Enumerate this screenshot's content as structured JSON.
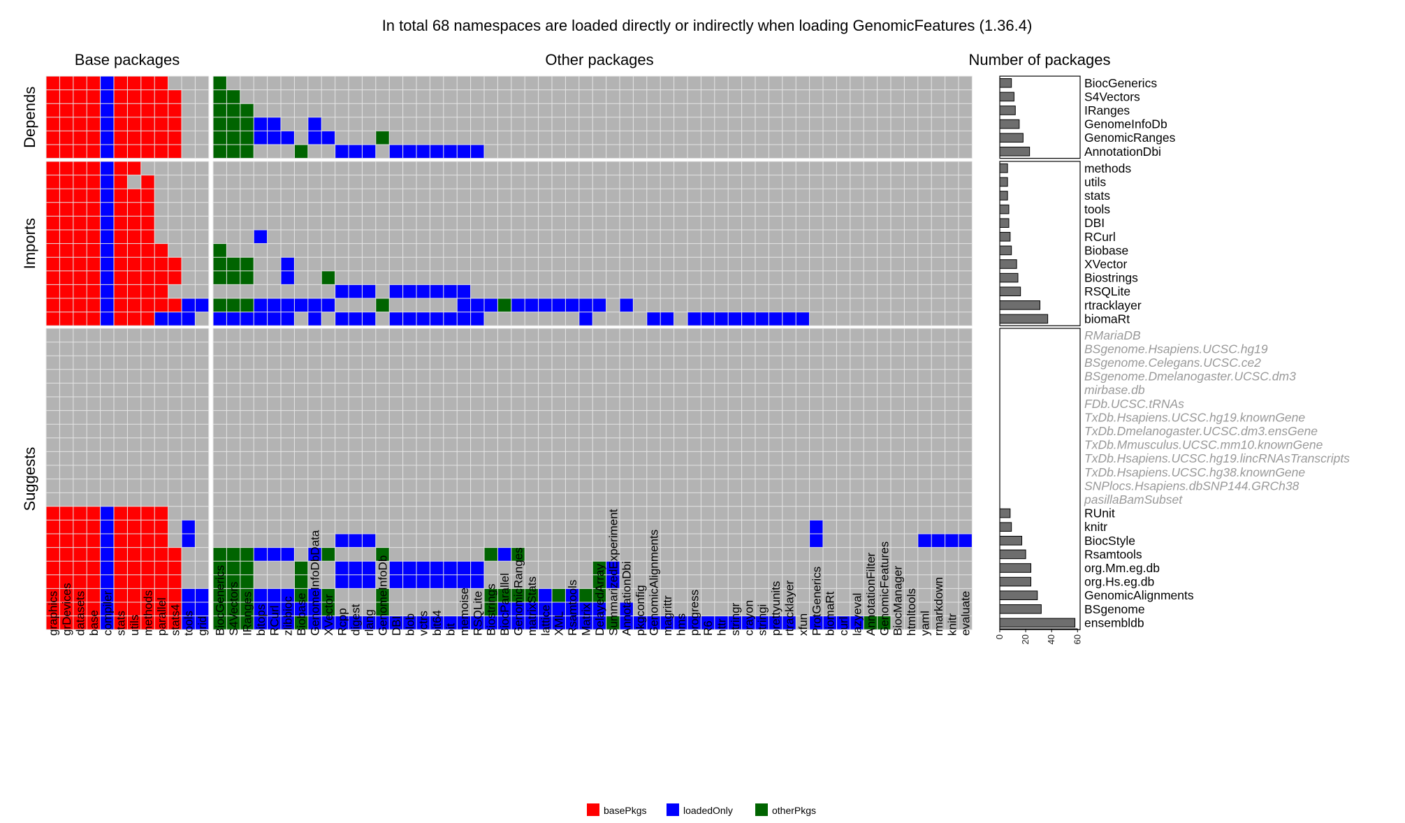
{
  "chart_data": {
    "type": "heatmap",
    "title": "In total 68 namespaces are loaded directly or indirectly when loading GenomicFeatures (1.36.4)",
    "panel_titles": [
      "Base packages",
      "Other packages",
      "Number of packages"
    ],
    "groups": [
      {
        "name": "Depends",
        "rows": [
          "BiocGenerics",
          "S4Vectors",
          "IRanges",
          "GenomeInfoDb",
          "GenomicRanges",
          "AnnotationDbi"
        ]
      },
      {
        "name": "Imports",
        "rows": [
          "methods",
          "utils",
          "stats",
          "tools",
          "DBI",
          "RCurl",
          "Biobase",
          "XVector",
          "Biostrings",
          "RSQLite",
          "rtracklayer",
          "biomaRt"
        ]
      },
      {
        "name": "Suggests",
        "rows": [
          "RMariaDB",
          "BSgenome.Hsapiens.UCSC.hg19",
          "BSgenome.Celegans.UCSC.ce2",
          "BSgenome.Dmelanogaster.UCSC.dm3",
          "mirbase.db",
          "FDb.UCSC.tRNAs",
          "TxDb.Hsapiens.UCSC.hg19.knownGene",
          "TxDb.Dmelanogaster.UCSC.dm3.ensGene",
          "TxDb.Mmusculus.UCSC.mm10.knownGene",
          "TxDb.Hsapiens.UCSC.hg19.lincRNAsTranscripts",
          "TxDb.Hsapiens.UCSC.hg38.knownGene",
          "SNPlocs.Hsapiens.dbSNP144.GRCh38",
          "pasillaBamSubset",
          "RUnit",
          "knitr",
          "BiocStyle",
          "Rsamtools",
          "org.Mm.eg.db",
          "org.Hs.eg.db",
          "GenomicAlignments",
          "BSgenome",
          "ensembldb"
        ]
      }
    ],
    "not_installed_rows": [
      "RMariaDB",
      "BSgenome.Hsapiens.UCSC.hg19",
      "BSgenome.Celegans.UCSC.ce2",
      "BSgenome.Dmelanogaster.UCSC.dm3",
      "mirbase.db",
      "FDb.UCSC.tRNAs",
      "TxDb.Hsapiens.UCSC.hg19.knownGene",
      "TxDb.Dmelanogaster.UCSC.dm3.ensGene",
      "TxDb.Mmusculus.UCSC.mm10.knownGene",
      "TxDb.Hsapiens.UCSC.hg19.lincRNAsTranscripts",
      "TxDb.Hsapiens.UCSC.hg38.knownGene",
      "SNPlocs.Hsapiens.dbSNP144.GRCh38",
      "pasillaBamSubset"
    ],
    "base_columns": [
      "graphics",
      "grDevices",
      "datasets",
      "base",
      "compiler",
      "stats",
      "utils",
      "methods",
      "parallel",
      "stats4",
      "tools",
      "grid"
    ],
    "other_columns": [
      "BiocGenerics",
      "S4Vectors",
      "IRanges",
      "bitops",
      "RCurl",
      "zlibbioc",
      "Biobase",
      "GenomeInfoDbData",
      "XVector",
      "Rcpp",
      "digest",
      "rlang",
      "GenomeInfoDb",
      "DBI",
      "blob",
      "vctrs",
      "bit64",
      "bit",
      "memoise",
      "RSQLite",
      "Biostrings",
      "BiocParallel",
      "GenomicRanges",
      "matrixStats",
      "lattice",
      "XML",
      "Rsamtools",
      "Matrix",
      "DelayedArray",
      "SummarizedExperiment",
      "AnnotationDbi",
      "pkgconfig",
      "GenomicAlignments",
      "magrittr",
      "hms",
      "progress",
      "R6",
      "httr",
      "stringr",
      "crayon",
      "stringi",
      "prettyunits",
      "rtracklayer",
      "xfun",
      "ProtGenerics",
      "biomaRt",
      "curl",
      "lazyeval",
      "AnnotationFilter",
      "GenomicFeatures",
      "BiocManager",
      "htmltools",
      "yaml",
      "rmarkdown",
      "knitr",
      "evaluate"
    ],
    "cell_codes": {
      "R": "basePkgs",
      "B": "loadedOnly",
      "G": "otherPkgs",
      ".": "not loaded"
    },
    "base_matrix": [
      "RRRRBRRRR...",
      "RRRRBRRRRR..",
      "RRRRBRRRRR..",
      "RRRRBRRRRR..",
      "RRRRBRRRRR..",
      "RRRRBRRRRR..",
      "RRRRBRR.....",
      "RRRRBR.R....",
      "RRRRBRRR....",
      "RRRRBRRR....",
      "RRRRBRRR....",
      "RRRRBRRR....",
      "RRRRBRRRR...",
      "RRRRBRRRRR..",
      "RRRRBRRRRR..",
      "RRRRBRRRR...",
      "RRRRBRRRRRBB",
      "RRRRBRRRBBB.",
      "............",
      "............",
      "............",
      "............",
      "............",
      "............",
      "............",
      "............",
      "............",
      "............",
      "............",
      "............",
      "............",
      "RRRRBRRRR...",
      "RRRRBRRRR.B.",
      "RRRRBRRRR.B.",
      "RRRRBRRRRR..",
      "RRRRBRRRRR..",
      "RRRRBRRRRR..",
      "RRRRBRRRRRBB",
      "RRRRBRRRRRBB",
      "RRRRBRRRRRBB"
    ],
    "other_matrix": [
      "G.......................................................",
      "GG......................................................",
      "GGG.....................................................",
      "GGGBB..B................................................",
      "GGGBBB.BB...G...........................................",
      "GGG...G..BBB.BBBBBBB....................................",
      "........................................................",
      "........................................................",
      "........................................................",
      "........................................................",
      "........................................................",
      "...B....................................................",
      "G.......................................................",
      "GGG..B..................................................",
      "GGG..B..G...............................................",
      ".........BBB.BBBBBB.....................................",
      "GGGBBBBBB...G.....BBBGBBBBBBB.B.........................",
      "BBBBBB.B.BBB.BBBBBBB.......B....BB.BBBBBBBBB............",
      "........................................................",
      "........................................................",
      "........................................................",
      "........................................................",
      "........................................................",
      "........................................................",
      "........................................................",
      "........................................................",
      "........................................................",
      "........................................................",
      "........................................................",
      "........................................................",
      "........................................................",
      "........................................................",
      "............................................B...........",
      ".........BBB................................B.......BBBBBB",
      "GGGBBB.BG...G.......GBG.................................",
      "GGG...G..BBB.BBBBBBB........GB..........................",
      "GGG...G..BBB.BBBBBBB........GB..........................",
      "GGGBBBGBG...G.......GGGGBGBGG...........................",
      "GGGBBBBBG...G.......GBBBBBBBB.B.........................",
      "GGGBBBGBBBBBBBBBBBBBBBBBBBBBBGBBBBBBBBBBBBB.BBBBGG......"
    ],
    "bar_values": [
      9,
      11,
      12,
      15,
      18,
      23,
      6,
      6,
      6,
      7,
      7,
      8,
      9,
      13,
      14,
      16,
      31,
      37,
      0,
      0,
      0,
      0,
      0,
      0,
      0,
      0,
      0,
      0,
      0,
      0,
      0,
      8,
      9,
      17,
      20,
      24,
      24,
      29,
      32,
      58
    ],
    "bar_axis": {
      "ticks": [
        0,
        20,
        40,
        60
      ],
      "xlim": [
        0,
        62
      ]
    },
    "legend": [
      {
        "label": "basePkgs",
        "color": "#ff0000"
      },
      {
        "label": "loadedOnly",
        "color": "#0000ff"
      },
      {
        "label": "otherPkgs",
        "color": "#006400"
      }
    ],
    "colors": {
      "empty": "#b3b3b3",
      "grid": "#e5e5e5",
      "bar": "#6e6e6e"
    }
  }
}
